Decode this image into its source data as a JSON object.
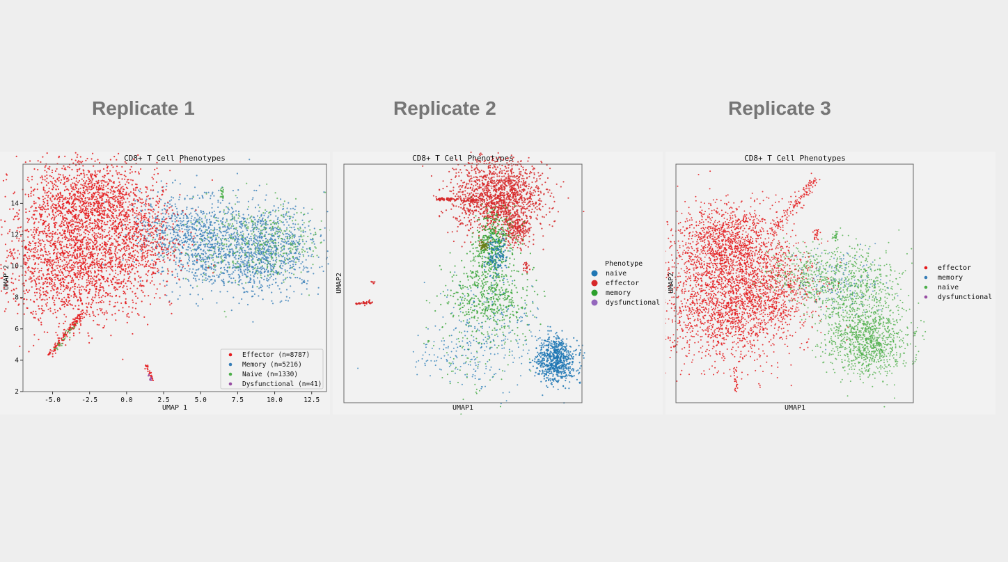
{
  "replicates": [
    {
      "label": "Replicate 1"
    },
    {
      "label": "Replicate 2"
    },
    {
      "label": "Replicate 3"
    }
  ],
  "colors": {
    "effector": "#e41a1c",
    "memory": "#377eb8",
    "naive": "#4daf4a",
    "dysfunctional": "#984ea3",
    "naive_r2": "#1f77b4",
    "effector_r2": "#d62728",
    "memory_r2": "#2ca02c",
    "dysfunctional_r2": "#9467bd"
  },
  "chart_data": [
    {
      "type": "scatter",
      "title": "CD8+ T Cell Phenotypes",
      "xlabel": "UMAP 1",
      "ylabel": "UMAP 2",
      "xlim": [
        -7,
        13.5
      ],
      "ylim": [
        2,
        16.5
      ],
      "xticks": [
        "-5.0",
        "-2.5",
        "0.0",
        "2.5",
        "5.0",
        "7.5",
        "10.0",
        "12.5"
      ],
      "yticks": [
        "2",
        "4",
        "6",
        "8",
        "10",
        "12",
        "14"
      ],
      "legend_position": "lower-right",
      "series": [
        {
          "name": "Effector (n=8787)",
          "category": "effector",
          "approx_center": [
            -2.5,
            11
          ]
        },
        {
          "name": "Memory (n=5216)",
          "category": "memory",
          "approx_center": [
            8,
            9.8
          ]
        },
        {
          "name": "Naive (n=1330)",
          "category": "naive",
          "approx_center": [
            9.5,
            10.5
          ]
        },
        {
          "name": "Dysfunctional (n=41)",
          "category": "dysfunctional",
          "approx_center": [
            1.5,
            3
          ]
        }
      ]
    },
    {
      "type": "scatter",
      "title": "CD8+ T Cell Phenotypes",
      "xlabel": "UMAP1",
      "ylabel": "UMAP2",
      "legend_title": "Phenotype",
      "legend_position": "right",
      "series": [
        {
          "name": "naive",
          "category": "naive_r2"
        },
        {
          "name": "effector",
          "category": "effector_r2"
        },
        {
          "name": "memory",
          "category": "memory_r2"
        },
        {
          "name": "dysfunctional",
          "category": "dysfunctional_r2"
        }
      ]
    },
    {
      "type": "scatter",
      "title": "CD8+ T Cell Phenotypes",
      "xlabel": "UMAP1",
      "ylabel": "UMAP2",
      "legend_position": "right",
      "series": [
        {
          "name": "effector",
          "category": "effector"
        },
        {
          "name": "memory",
          "category": "memory"
        },
        {
          "name": "naive",
          "category": "naive"
        },
        {
          "name": "dysfunctional",
          "category": "dysfunctional"
        }
      ]
    }
  ]
}
